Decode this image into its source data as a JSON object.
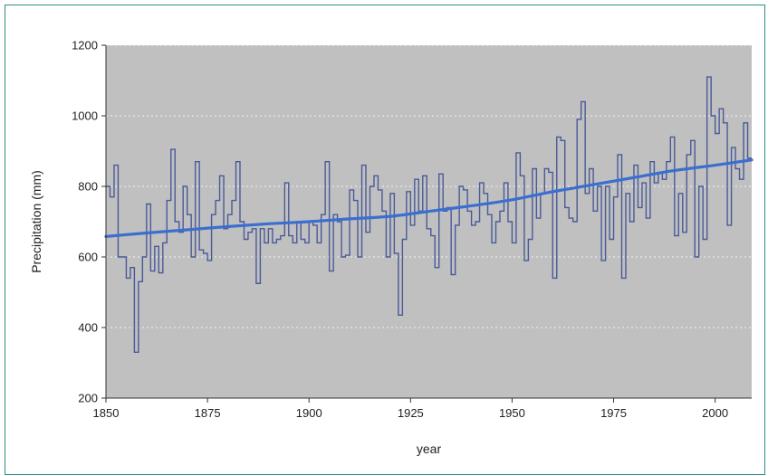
{
  "chart_data": {
    "type": "line",
    "xlabel": "year",
    "ylabel": "Precipitation (mm)",
    "xlim": [
      1850,
      2009
    ],
    "ylim": [
      200,
      1200
    ],
    "x_ticks": [
      1850,
      1875,
      1900,
      1925,
      1950,
      1975,
      2000
    ],
    "y_ticks": [
      200,
      400,
      600,
      800,
      1000,
      1200
    ],
    "grid": "horizontal dotted",
    "colors": {
      "plot_background": "#c0c0c0",
      "step_series": "#4a5a98",
      "trend_series": "#3a6fd0"
    },
    "series": [
      {
        "kind": "step",
        "x": [
          1850,
          1851,
          1852,
          1853,
          1854,
          1855,
          1856,
          1857,
          1858,
          1859,
          1860,
          1861,
          1862,
          1863,
          1864,
          1865,
          1866,
          1867,
          1868,
          1869,
          1870,
          1871,
          1872,
          1873,
          1874,
          1875,
          1876,
          1877,
          1878,
          1879,
          1880,
          1881,
          1882,
          1883,
          1884,
          1885,
          1886,
          1887,
          1888,
          1889,
          1890,
          1891,
          1892,
          1893,
          1894,
          1895,
          1896,
          1897,
          1898,
          1899,
          1900,
          1901,
          1902,
          1903,
          1904,
          1905,
          1906,
          1907,
          1908,
          1909,
          1910,
          1911,
          1912,
          1913,
          1914,
          1915,
          1916,
          1917,
          1918,
          1919,
          1920,
          1921,
          1922,
          1923,
          1924,
          1925,
          1926,
          1927,
          1928,
          1929,
          1930,
          1931,
          1932,
          1933,
          1934,
          1935,
          1936,
          1937,
          1938,
          1939,
          1940,
          1941,
          1942,
          1943,
          1944,
          1945,
          1946,
          1947,
          1948,
          1949,
          1950,
          1951,
          1952,
          1953,
          1954,
          1955,
          1956,
          1957,
          1958,
          1959,
          1960,
          1961,
          1962,
          1963,
          1964,
          1965,
          1966,
          1967,
          1968,
          1969,
          1970,
          1971,
          1972,
          1973,
          1974,
          1975,
          1976,
          1977,
          1978,
          1979,
          1980,
          1981,
          1982,
          1983,
          1984,
          1985,
          1986,
          1987,
          1988,
          1989,
          1990,
          1991,
          1992,
          1993,
          1994,
          1995,
          1996,
          1997,
          1998,
          1999,
          2000,
          2001,
          2002,
          2003,
          2004,
          2005,
          2006,
          2007,
          2008
        ],
        "values": [
          800,
          770,
          860,
          600,
          600,
          540,
          570,
          330,
          530,
          600,
          750,
          560,
          630,
          555,
          640,
          760,
          905,
          700,
          670,
          800,
          720,
          600,
          870,
          620,
          610,
          590,
          720,
          760,
          830,
          680,
          720,
          760,
          870,
          700,
          650,
          670,
          680,
          525,
          680,
          640,
          680,
          640,
          650,
          660,
          810,
          660,
          640,
          700,
          650,
          640,
          700,
          690,
          640,
          720,
          870,
          560,
          720,
          700,
          600,
          605,
          790,
          760,
          600,
          860,
          670,
          800,
          830,
          790,
          730,
          600,
          780,
          610,
          435,
          650,
          785,
          690,
          820,
          730,
          830,
          680,
          660,
          570,
          835,
          730,
          740,
          550,
          690,
          800,
          790,
          730,
          690,
          700,
          810,
          780,
          720,
          640,
          700,
          730,
          810,
          700,
          640,
          895,
          830,
          590,
          650,
          850,
          710,
          780,
          850,
          840,
          540,
          940,
          930,
          740,
          710,
          700,
          990,
          1040,
          780,
          850,
          730,
          800,
          590,
          800,
          650,
          770,
          890,
          540,
          780,
          700,
          860,
          740,
          810,
          710,
          870,
          810,
          840,
          820,
          870,
          940,
          660,
          780,
          670,
          890,
          930,
          600,
          800,
          650,
          1110,
          1000,
          950,
          1020,
          980,
          690,
          910,
          850,
          820,
          980,
          880
        ]
      },
      {
        "kind": "trend",
        "x": [
          1850,
          1860,
          1870,
          1880,
          1890,
          1900,
          1910,
          1920,
          1930,
          1940,
          1950,
          1960,
          1970,
          1980,
          1990,
          2000,
          2009
        ],
        "values": [
          658,
          668,
          677,
          686,
          694,
          700,
          708,
          715,
          730,
          745,
          762,
          785,
          805,
          825,
          845,
          860,
          875
        ]
      }
    ]
  }
}
